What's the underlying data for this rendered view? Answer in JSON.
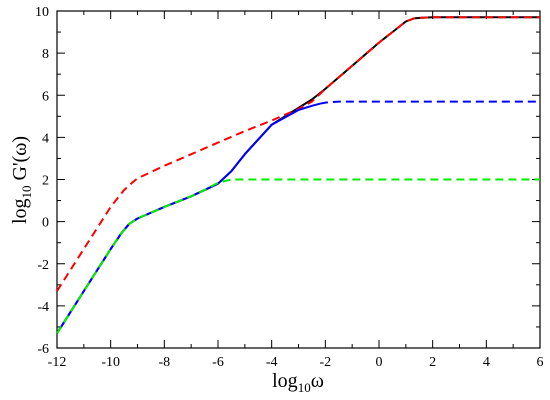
{
  "chart_data": {
    "type": "line",
    "xlabel": {
      "base": "log",
      "sub": "10",
      "rest": "ω"
    },
    "ylabel": {
      "base": "log",
      "sub": "10",
      "rest": " G'(ω)"
    },
    "xlim": [
      -12,
      6
    ],
    "ylim": [
      -6,
      10
    ],
    "x_ticks": [
      -12,
      -10,
      -8,
      -6,
      -4,
      -2,
      0,
      2,
      4,
      6
    ],
    "y_ticks": [
      -6,
      -4,
      -2,
      0,
      2,
      4,
      6,
      8,
      10
    ],
    "grid": false,
    "series": [
      {
        "color": "#000000",
        "style": "solid",
        "x": [
          -12,
          -11,
          -10,
          -9.6,
          -9.3,
          -9,
          -8,
          -7,
          -6,
          -5.5,
          -5,
          -4,
          -3,
          -2.5,
          -2,
          -1,
          0,
          0.5,
          1,
          1.3,
          1.6,
          2,
          6
        ],
        "y": [
          -5.3,
          -3.3,
          -1.3,
          -0.55,
          -0.1,
          0.15,
          0.7,
          1.2,
          1.8,
          2.4,
          3.2,
          4.6,
          5.4,
          5.8,
          6.3,
          7.4,
          8.5,
          9.0,
          9.5,
          9.65,
          9.68,
          9.7,
          9.7
        ]
      },
      {
        "color": "#ff0000",
        "style": "dashed",
        "x": [
          -12,
          -11,
          -10,
          -9.5,
          -9.2,
          -9,
          -8,
          -7,
          -6,
          -5,
          -4,
          -3,
          -2.5,
          -2,
          -1,
          0,
          0.5,
          1,
          1.3,
          1.6,
          2,
          6
        ],
        "y": [
          -3.3,
          -1.3,
          0.7,
          1.5,
          1.85,
          2.05,
          2.65,
          3.2,
          3.75,
          4.3,
          4.8,
          5.35,
          5.7,
          6.3,
          7.4,
          8.5,
          9.0,
          9.5,
          9.65,
          9.68,
          9.7,
          9.7
        ]
      },
      {
        "color": "#0000ff",
        "style": "solid",
        "x": [
          -12,
          -11,
          -10,
          -9.6,
          -9.3,
          -9,
          -8,
          -7,
          -6,
          -5.5,
          -5,
          -4,
          -3,
          -2.5,
          -2.2
        ],
        "y": [
          -5.3,
          -3.3,
          -1.3,
          -0.55,
          -0.1,
          0.15,
          0.7,
          1.2,
          1.8,
          2.4,
          3.2,
          4.6,
          5.3,
          5.5,
          5.6
        ]
      },
      {
        "color": "#0000ff",
        "style": "dashed",
        "x": [
          -2.2,
          -2,
          -1.5,
          -1,
          0,
          6
        ],
        "y": [
          5.6,
          5.65,
          5.7,
          5.7,
          5.7,
          5.7
        ]
      },
      {
        "color": "#00ee00",
        "style": "dashed",
        "x": [
          -12,
          -11,
          -10,
          -9.6,
          -9.3,
          -9,
          -8,
          -7,
          -6.5,
          -6,
          -5.5,
          -5,
          0,
          6
        ],
        "y": [
          -5.3,
          -3.3,
          -1.3,
          -0.55,
          -0.1,
          0.15,
          0.7,
          1.2,
          1.5,
          1.85,
          2.0,
          2.0,
          2.0,
          2.0
        ]
      }
    ]
  }
}
